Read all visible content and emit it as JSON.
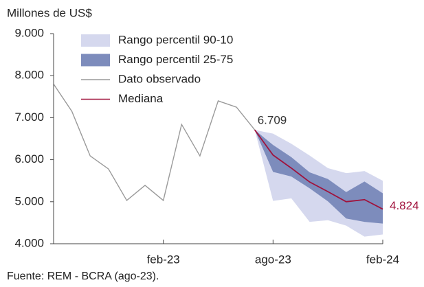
{
  "chart_data": {
    "type": "fan",
    "y_label": "Millones de US$",
    "source": "Fuente: REM - BCRA (ago-23).",
    "categories": [
      null,
      null,
      null,
      null,
      null,
      null,
      "feb-23",
      null,
      null,
      null,
      null,
      null,
      "ago-23",
      null,
      null,
      null,
      null,
      null,
      "feb-24"
    ],
    "ylim": [
      4000,
      9000
    ],
    "yticks": [
      {
        "value": 4000,
        "label": "4.000"
      },
      {
        "value": 5000,
        "label": "5.000"
      },
      {
        "value": 6000,
        "label": "6.000"
      },
      {
        "value": 7000,
        "label": "7.000"
      },
      {
        "value": 8000,
        "label": "8.000"
      },
      {
        "value": 9000,
        "label": "9.000"
      }
    ],
    "bands": [
      {
        "name": "Rango percentil 90-10",
        "color": "#d5d8ee",
        "high": [
          null,
          null,
          null,
          null,
          null,
          null,
          null,
          null,
          null,
          null,
          null,
          6709,
          6620,
          6380,
          6100,
          5800,
          5680,
          5730,
          5500
        ],
        "low": [
          null,
          null,
          null,
          null,
          null,
          null,
          null,
          null,
          null,
          null,
          null,
          6709,
          5020,
          5080,
          4520,
          4560,
          4430,
          4170,
          4220
        ]
      },
      {
        "name": "Rango percentil 25-75",
        "color": "#7d8cbc",
        "high": [
          null,
          null,
          null,
          null,
          null,
          null,
          null,
          null,
          null,
          null,
          null,
          6709,
          6350,
          6060,
          5700,
          5540,
          5230,
          5480,
          5200
        ],
        "low": [
          null,
          null,
          null,
          null,
          null,
          null,
          null,
          null,
          null,
          null,
          null,
          6709,
          5710,
          5600,
          5320,
          5010,
          4600,
          4520,
          4480
        ]
      }
    ],
    "series": [
      {
        "name": "Dato observado",
        "color": "#9a9a9a",
        "values": [
          7800,
          7150,
          6090,
          5780,
          5030,
          5390,
          5030,
          6840,
          6090,
          7400,
          7250,
          6709,
          null,
          null,
          null,
          null,
          null,
          null,
          null
        ],
        "value_labels": [
          null,
          null,
          null,
          null,
          null,
          null,
          null,
          null,
          null,
          null,
          null,
          "6.709",
          null,
          null,
          null,
          null,
          null,
          null,
          null
        ],
        "label_color": "#333333"
      },
      {
        "name": "Mediana",
        "color": "#a0123c",
        "values": [
          null,
          null,
          null,
          null,
          null,
          null,
          null,
          null,
          null,
          null,
          null,
          6709,
          6110,
          5800,
          5470,
          5240,
          5000,
          5050,
          4824
        ],
        "value_labels": [
          null,
          null,
          null,
          null,
          null,
          null,
          null,
          null,
          null,
          null,
          null,
          null,
          null,
          null,
          null,
          null,
          null,
          null,
          "4.824"
        ],
        "label_color": "#a0123c"
      }
    ]
  }
}
